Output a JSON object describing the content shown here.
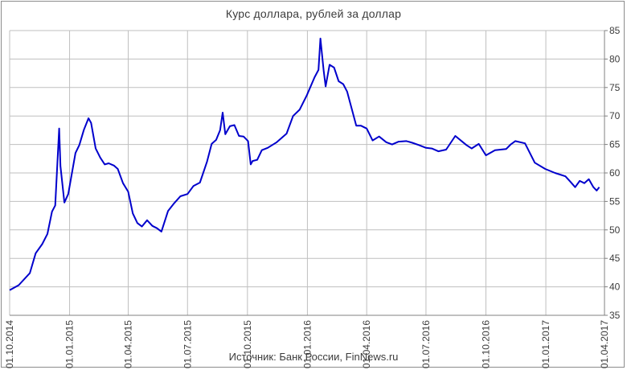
{
  "chart_data": {
    "type": "line",
    "title": "Курс доллара,  рублей  за доллар",
    "source": "Источник: Банк России, FinNews.ru",
    "y_ticks": [
      35,
      40,
      45,
      50,
      55,
      60,
      65,
      70,
      75,
      80,
      85
    ],
    "ylim": [
      35,
      85
    ],
    "y_axis_side": "right",
    "x_ticks": [
      "01.10.2014",
      "01.01.2015",
      "01.04.2015",
      "01.07.2015",
      "01.10.2015",
      "01.01.2016",
      "01.04.2016",
      "01.07.2016",
      "01.10.2016",
      "01.01.2017",
      "01.04.2017"
    ],
    "xlim": [
      "2014-10-01",
      "2017-04-01"
    ],
    "grid": true,
    "line_color": "#0000cc",
    "series": [
      {
        "x": [
          "2014-10-01",
          "2014-10-15",
          "2014-11-01",
          "2014-11-10",
          "2014-11-20",
          "2014-11-28",
          "2014-12-05",
          "2014-12-10",
          "2014-12-16",
          "2014-12-18",
          "2014-12-24",
          "2014-12-30",
          "2015-01-10",
          "2015-01-16",
          "2015-01-23",
          "2015-01-30",
          "2015-02-03",
          "2015-02-10",
          "2015-02-17",
          "2015-02-24",
          "2015-03-02",
          "2015-03-10",
          "2015-03-16",
          "2015-03-24",
          "2015-04-01",
          "2015-04-08",
          "2015-04-15",
          "2015-04-22",
          "2015-04-30",
          "2015-05-08",
          "2015-05-15",
          "2015-05-22",
          "2015-06-01",
          "2015-06-10",
          "2015-06-20",
          "2015-07-01",
          "2015-07-10",
          "2015-07-20",
          "2015-07-31",
          "2015-08-07",
          "2015-08-14",
          "2015-08-20",
          "2015-08-24",
          "2015-08-28",
          "2015-09-04",
          "2015-09-11",
          "2015-09-18",
          "2015-09-25",
          "2015-10-02",
          "2015-10-06",
          "2015-10-09",
          "2015-10-16",
          "2015-10-23",
          "2015-11-01",
          "2015-11-15",
          "2015-11-30",
          "2015-12-10",
          "2015-12-20",
          "2015-12-31",
          "2016-01-12",
          "2016-01-18",
          "2016-01-21",
          "2016-01-26",
          "2016-01-29",
          "2016-02-04",
          "2016-02-11",
          "2016-02-18",
          "2016-02-25",
          "2016-03-02",
          "2016-03-09",
          "2016-03-16",
          "2016-03-23",
          "2016-04-01",
          "2016-04-10",
          "2016-04-20",
          "2016-05-01",
          "2016-05-10",
          "2016-05-20",
          "2016-06-01",
          "2016-06-10",
          "2016-06-20",
          "2016-07-01",
          "2016-07-10",
          "2016-07-20",
          "2016-08-01",
          "2016-08-15",
          "2016-09-01",
          "2016-09-09",
          "2016-09-20",
          "2016-10-01",
          "2016-10-15",
          "2016-11-01",
          "2016-11-08",
          "2016-11-15",
          "2016-11-30",
          "2016-12-15",
          "2016-12-31",
          "2017-01-15",
          "2017-01-31",
          "2017-02-08",
          "2017-02-15",
          "2017-02-22",
          "2017-03-01",
          "2017-03-08",
          "2017-03-15",
          "2017-03-20",
          "2017-03-24"
        ],
        "y": [
          39.4,
          40.3,
          42.4,
          45.9,
          47.5,
          49.3,
          53.2,
          54.3,
          67.8,
          61.2,
          54.8,
          56.3,
          63.5,
          64.9,
          67.6,
          69.6,
          68.8,
          64.3,
          62.7,
          61.5,
          61.7,
          61.3,
          60.7,
          58.2,
          56.7,
          52.9,
          51.2,
          50.6,
          51.7,
          50.7,
          50.3,
          49.7,
          53.3,
          54.6,
          55.9,
          56.3,
          57.7,
          58.3,
          62.0,
          65.1,
          65.8,
          67.5,
          70.6,
          66.8,
          68.2,
          68.4,
          66.5,
          66.4,
          65.6,
          61.5,
          62.1,
          62.3,
          64.0,
          64.4,
          65.4,
          66.9,
          70.0,
          71.1,
          73.6,
          76.8,
          78.1,
          83.6,
          77.9,
          75.2,
          79.0,
          78.5,
          76.1,
          75.6,
          74.3,
          71.3,
          68.3,
          68.3,
          67.8,
          65.7,
          66.4,
          65.4,
          65.0,
          65.5,
          65.6,
          65.3,
          64.9,
          64.4,
          64.3,
          63.8,
          64.1,
          66.5,
          64.9,
          64.3,
          65.1,
          63.1,
          64.0,
          64.2,
          65.0,
          65.6,
          65.2,
          61.8,
          60.7,
          60.0,
          59.4,
          58.4,
          57.5,
          58.6,
          58.2,
          58.9,
          57.5,
          56.9,
          57.5
        ]
      }
    ]
  }
}
